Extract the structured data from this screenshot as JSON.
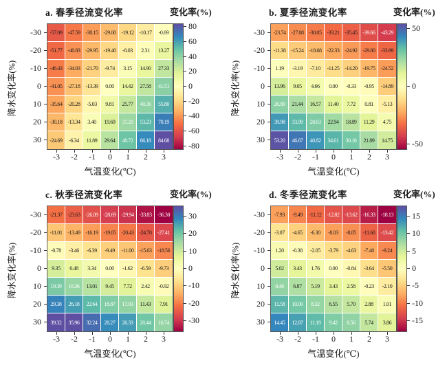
{
  "figure": {
    "description": "2x2 grid of seasonal runoff change-rate heatmaps vs temperature and precipitation change"
  },
  "colors": {
    "spectral_stops": [
      "#9e0142",
      "#d53e4f",
      "#f46d43",
      "#fdae61",
      "#fee08b",
      "#ffffbf",
      "#e6f598",
      "#abdda4",
      "#66c2a5",
      "#3288bd",
      "#5e4fa2"
    ],
    "cell_text_dark": "#1a1a1a",
    "cell_text_light": "#ffffff",
    "axis": "#333333"
  },
  "chart_data": [
    {
      "type": "heatmap",
      "panel": "a",
      "title": "a. 春季径流变化率",
      "colorbar_label": "变化率(%)",
      "xlabel": "气温变化(℃)",
      "ylabel": "降水变化率(%)",
      "x_ticks": [
        "-3",
        "-2",
        "-1",
        "0",
        "1",
        "2",
        "3"
      ],
      "y_ticks": [
        "-30",
        "-20",
        "-10",
        "0",
        "10",
        "20",
        "30"
      ],
      "scale": {
        "min": -84,
        "max": 84
      },
      "colorbar": {
        "ticks": [
          "80",
          "60",
          "40",
          "20",
          "0",
          "-20",
          "-40",
          "-60",
          "-80"
        ]
      },
      "values": [
        [
          -57.09,
          -47.59,
          -38.15,
          -29.0,
          -19.12,
          -10.17,
          -0.69
        ],
        [
          -51.77,
          -40.83,
          -29.95,
          -19.4,
          -8.03,
          2.31,
          13.27
        ],
        [
          -46.43,
          -34.03,
          -21.7,
          -9.74,
          3.15,
          14.9,
          27.33
        ],
        [
          -41.05,
          -27.18,
          -13.39,
          0.0,
          14.42,
          27.58,
          41.51
        ],
        [
          -35.64,
          -20.28,
          -5.03,
          9.81,
          25.77,
          40.36,
          55.8
        ],
        [
          -30.18,
          -13.34,
          3.4,
          19.69,
          37.2,
          53.23,
          70.19
        ],
        [
          -24.69,
          -6.34,
          11.89,
          29.64,
          48.72,
          66.18,
          84.68
        ]
      ]
    },
    {
      "type": "heatmap",
      "panel": "b",
      "title": "b. 夏季径流变化率",
      "colorbar_label": "变化率(%)",
      "xlabel": "气温变化(℃)",
      "ylabel": "降水变化率(%)",
      "x_ticks": [
        "-3",
        "-2",
        "-1",
        "0",
        "1",
        "2",
        "3"
      ],
      "y_ticks": [
        "-30",
        "-20",
        "-10",
        "0",
        "10",
        "20",
        "30"
      ],
      "scale": {
        "min": -54,
        "max": 54
      },
      "colorbar": {
        "ticks": [
          "50",
          "0",
          "-50"
        ]
      },
      "values": [
        [
          -23.74,
          -27.08,
          -30.05,
          -33.21,
          -35.45,
          -39.66,
          -43.29
        ],
        [
          -11.38,
          -15.24,
          -18.68,
          -22.33,
          -24.92,
          -29.8,
          -33.99
        ],
        [
          1.19,
          -3.19,
          -7.1,
          -11.25,
          -14.2,
          -19.75,
          -24.52
        ],
        [
          13.96,
          9.05,
          4.66,
          0.0,
          -0.33,
          -0.95,
          -14.89
        ],
        [
          26.89,
          21.44,
          16.57,
          11.4,
          7.72,
          0.81,
          -5.13
        ],
        [
          39.98,
          33.99,
          28.63,
          22.94,
          18.89,
          11.29,
          4.75
        ],
        [
          53.2,
          46.67,
          40.82,
          34.61,
          30.18,
          21.89,
          14.75
        ]
      ]
    },
    {
      "type": "heatmap",
      "panel": "c",
      "title": "c. 秋季径流变化率",
      "colorbar_label": "变化率(%)",
      "xlabel": "气温变化(℃)",
      "ylabel": "降水变化率(%)",
      "x_ticks": [
        "-3",
        "-2",
        "-1",
        "0",
        "1",
        "2",
        "3"
      ],
      "y_ticks": [
        "-30",
        "-20",
        "-10",
        "0",
        "10",
        "20",
        "30"
      ],
      "scale": {
        "min": -36,
        "max": 36
      },
      "colorbar": {
        "ticks": [
          "30",
          "20",
          "10",
          "0",
          "-10",
          "-20",
          "-30"
        ]
      },
      "values": [
        [
          -21.37,
          -23.63,
          -26.09,
          -28.69,
          -29.94,
          -33.83,
          -36.3
        ],
        [
          -11.01,
          -13.49,
          -16.19,
          -19.05,
          -20.43,
          -24.7,
          -27.41
        ],
        [
          -0.78,
          -3.46,
          -6.39,
          -9.49,
          -11.0,
          -15.63,
          -18.56
        ],
        [
          9.35,
          6.48,
          3.34,
          0.0,
          -1.62,
          -6.59,
          -9.73
        ],
        [
          19.39,
          16.36,
          13.01,
          9.45,
          7.72,
          2.42,
          -0.92
        ],
        [
          29.38,
          26.18,
          22.64,
          18.87,
          17.03,
          11.43,
          7.91
        ],
        [
          39.32,
          35.96,
          32.24,
          28.27,
          26.33,
          20.44,
          16.74
        ]
      ]
    },
    {
      "type": "heatmap",
      "panel": "d",
      "title": "d. 冬季径流变化率",
      "colorbar_label": "变化率(%)",
      "xlabel": "气温变化(℃)",
      "ylabel": "降水变化率(%)",
      "x_ticks": [
        "-3",
        "-2",
        "-1",
        "0",
        "1",
        "2",
        "3"
      ],
      "y_ticks": [
        "-30",
        "-20",
        "-10",
        "0",
        "10",
        "20",
        "30"
      ],
      "scale": {
        "min": -18,
        "max": 18
      },
      "colorbar": {
        "ticks": [
          "15",
          "10",
          "5",
          "0",
          "-5",
          "-10",
          "-15"
        ]
      },
      "values": [
        [
          -7.93,
          -9.49,
          -11.12,
          -12.82,
          -13.62,
          -16.33,
          -18.13
        ],
        [
          -3.07,
          -4.65,
          -6.3,
          -8.03,
          -8.85,
          -11.6,
          -13.42
        ],
        [
          1.2,
          -0.38,
          -2.05,
          -3.79,
          -4.63,
          -7.4,
          -9.24
        ],
        [
          5.02,
          3.43,
          1.76,
          0.0,
          -0.84,
          -3.64,
          -5.5
        ],
        [
          8.46,
          6.87,
          5.19,
          3.43,
          2.58,
          -0.23,
          -2.1
        ],
        [
          11.58,
          10.0,
          8.32,
          6.55,
          5.7,
          2.88,
          1.01
        ],
        [
          14.45,
          12.87,
          11.19,
          9.42,
          8.56,
          5.74,
          3.86
        ]
      ]
    }
  ]
}
